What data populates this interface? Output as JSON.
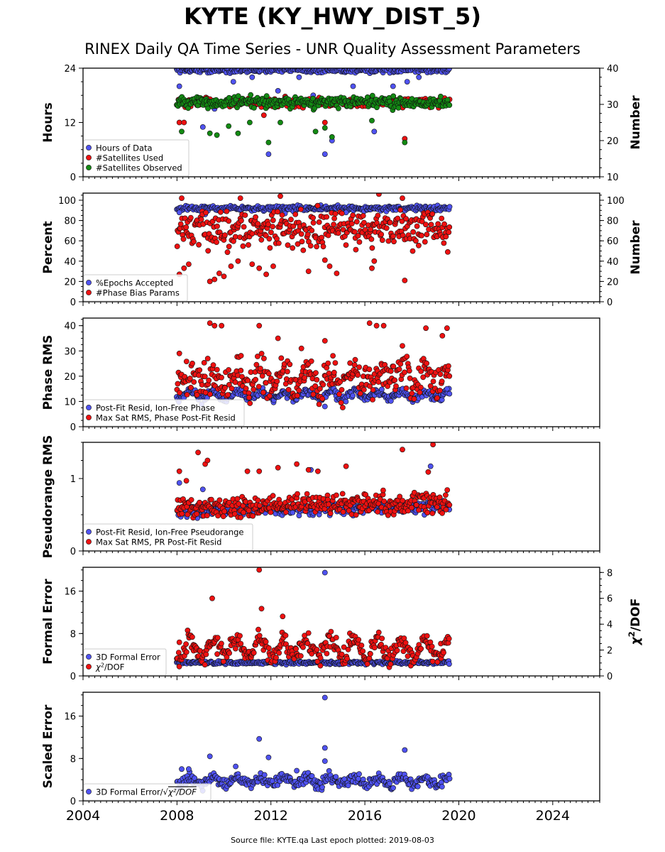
{
  "figure": {
    "title": "KYTE (KY_HWY_DIST_5)",
    "subtitle": "RINEX Daily QA Time Series - UNR Quality Assessment Parameters",
    "footer": "Source file: KYTE.qa Last epoch plotted: 2019-08-03"
  },
  "colors": {
    "blue": "#4f52f0",
    "red": "#ee1111",
    "green": "#138a13",
    "edge": "#111111"
  },
  "chart_data": [
    {
      "type": "scatter",
      "xlim": [
        2004,
        2026
      ],
      "x_ticks": [
        2004,
        2008,
        2012,
        2016,
        2020,
        2024
      ],
      "x_tick_labels": [
        "2004",
        "2008",
        "2012",
        "2016",
        "2020",
        "2024"
      ],
      "x_data_range": [
        2008.0,
        2019.6
      ],
      "ylabel": "Hours",
      "ylim": [
        0,
        24
      ],
      "y_ticks": [
        0,
        12,
        24
      ],
      "y_tick_labels": [
        "0",
        "12",
        "24"
      ],
      "y2label": "Number",
      "y2lim": [
        10,
        40
      ],
      "y2_ticks": [
        10,
        20,
        30,
        40
      ],
      "y2_tick_labels": [
        "10",
        "20",
        "30",
        "40"
      ],
      "legend": "lower-left",
      "series": [
        {
          "name": "Hours of Data",
          "color": "blue",
          "axis": "left",
          "typical": 23.6,
          "spread": 0.3,
          "outliers": [
            [
              2008.1,
              20
            ],
            [
              2008.3,
              17
            ],
            [
              2009.1,
              11
            ],
            [
              2009.6,
              15
            ],
            [
              2010.4,
              21
            ],
            [
              2011.2,
              22
            ],
            [
              2011.9,
              5
            ],
            [
              2012.3,
              19
            ],
            [
              2013.2,
              22
            ],
            [
              2013.8,
              18
            ],
            [
              2014.3,
              5
            ],
            [
              2014.6,
              8
            ],
            [
              2015.5,
              20
            ],
            [
              2016.4,
              10
            ],
            [
              2017.2,
              20
            ],
            [
              2017.8,
              21
            ],
            [
              2018.3,
              22
            ]
          ]
        },
        {
          "name": "#Satellites Used",
          "color": "red",
          "axis": "right",
          "typical": 30.5,
          "spread": 0.6,
          "outliers": [
            [
              2008.1,
              25
            ],
            [
              2008.3,
              25
            ],
            [
              2011.7,
              27
            ],
            [
              2014.3,
              25
            ],
            [
              2017.7,
              20.5
            ]
          ]
        },
        {
          "name": "#Satellites Observed",
          "color": "green",
          "axis": "right",
          "typical": 30.5,
          "spread": 0.8,
          "outliers": [
            [
              2008.2,
              22.5
            ],
            [
              2009.4,
              22
            ],
            [
              2009.7,
              21.5
            ],
            [
              2010.2,
              24
            ],
            [
              2010.6,
              22
            ],
            [
              2011.1,
              25
            ],
            [
              2011.9,
              19.5
            ],
            [
              2012.4,
              25
            ],
            [
              2013.9,
              22.5
            ],
            [
              2014.3,
              23.5
            ],
            [
              2014.6,
              21
            ],
            [
              2016.3,
              25.5
            ],
            [
              2017.7,
              19.5
            ]
          ]
        }
      ]
    },
    {
      "type": "scatter",
      "xlim": [
        2004,
        2026
      ],
      "x_ticks": [
        2004,
        2008,
        2012,
        2016,
        2020,
        2024
      ],
      "x_tick_labels": [
        "2004",
        "2008",
        "2012",
        "2016",
        "2020",
        "2024"
      ],
      "x_data_range": [
        2008.0,
        2019.6
      ],
      "ylabel": "Percent",
      "ylim": [
        0,
        107
      ],
      "y_ticks": [
        0,
        20,
        40,
        60,
        80,
        100
      ],
      "y_tick_labels": [
        "0",
        "20",
        "40",
        "60",
        "80",
        "100"
      ],
      "y2label": "Number",
      "y2lim": [
        0,
        107
      ],
      "y2_ticks": [
        0,
        20,
        40,
        60,
        80,
        100
      ],
      "y2_tick_labels": [
        "0",
        "20",
        "40",
        "60",
        "80",
        "100"
      ],
      "legend": "lower-left",
      "series": [
        {
          "name": "%Epochs Accepted",
          "color": "blue",
          "axis": "left",
          "typical": 92,
          "spread": 1.2,
          "outliers": [
            [
              2008.1,
              88
            ],
            [
              2009.2,
              86
            ],
            [
              2012.6,
              87
            ],
            [
              2015.2,
              88
            ]
          ]
        },
        {
          "name": "#Phase Bias Params",
          "color": "red",
          "axis": "right",
          "typical": 72,
          "spread": 9,
          "outliers": [
            [
              2008.1,
              27
            ],
            [
              2008.3,
              33
            ],
            [
              2008.5,
              37
            ],
            [
              2009.4,
              20
            ],
            [
              2009.6,
              22
            ],
            [
              2009.8,
              28
            ],
            [
              2010.0,
              25
            ],
            [
              2010.3,
              35
            ],
            [
              2010.6,
              40
            ],
            [
              2011.2,
              37
            ],
            [
              2011.5,
              33
            ],
            [
              2011.8,
              27
            ],
            [
              2012.1,
              35
            ],
            [
              2013.6,
              30
            ],
            [
              2014.3,
              41
            ],
            [
              2014.5,
              35
            ],
            [
              2014.8,
              28
            ],
            [
              2016.3,
              33
            ],
            [
              2016.4,
              40
            ],
            [
              2017.7,
              21
            ],
            [
              2008.2,
              102
            ],
            [
              2010.7,
              102
            ],
            [
              2012.4,
              104
            ],
            [
              2016.6,
              106
            ],
            [
              2017.6,
              102
            ]
          ]
        }
      ]
    },
    {
      "type": "scatter",
      "xlim": [
        2004,
        2026
      ],
      "x_ticks": [
        2004,
        2008,
        2012,
        2016,
        2020,
        2024
      ],
      "x_tick_labels": [
        "2004",
        "2008",
        "2012",
        "2016",
        "2020",
        "2024"
      ],
      "x_data_range": [
        2008.0,
        2019.6
      ],
      "ylabel": "Phase RMS",
      "ylim": [
        0,
        43
      ],
      "y_ticks": [
        0,
        10,
        20,
        30,
        40
      ],
      "y_tick_labels": [
        "0",
        "10",
        "20",
        "30",
        "40"
      ],
      "legend": "lower-left",
      "series": [
        {
          "name": "Post-Fit Resid, Ion-Free Phase",
          "color": "blue",
          "axis": "left",
          "typical": 12.5,
          "spread": 0.8,
          "seasonal": 1.5,
          "outliers": [
            [
              2014.3,
              8
            ],
            [
              2019.5,
              15
            ]
          ]
        },
        {
          "name": "Max Sat RMS, Phase Post-Fit Resid",
          "color": "red",
          "axis": "left",
          "typical": 19,
          "spread": 3.5,
          "seasonal": 3,
          "outliers": [
            [
              2009.4,
              41
            ],
            [
              2009.6,
              40
            ],
            [
              2009.9,
              40
            ],
            [
              2011.5,
              40
            ],
            [
              2012.3,
              35
            ],
            [
              2013.3,
              31
            ],
            [
              2014.3,
              34
            ],
            [
              2016.2,
              41
            ],
            [
              2016.5,
              40
            ],
            [
              2016.8,
              40
            ],
            [
              2017.6,
              32
            ],
            [
              2018.6,
              39
            ],
            [
              2019.3,
              36
            ],
            [
              2019.5,
              39
            ],
            [
              2008.1,
              29
            ]
          ]
        }
      ]
    },
    {
      "type": "scatter",
      "xlim": [
        2004,
        2026
      ],
      "x_ticks": [
        2004,
        2008,
        2012,
        2016,
        2020,
        2024
      ],
      "x_tick_labels": [
        "2004",
        "2008",
        "2012",
        "2016",
        "2020",
        "2024"
      ],
      "x_data_range": [
        2008.0,
        2019.6
      ],
      "ylabel": "Pseudorange RMS",
      "ylim": [
        0,
        1.5
      ],
      "y_ticks": [
        0,
        1
      ],
      "y_tick_labels": [
        "0",
        "1"
      ],
      "legend": "lower-left",
      "series": [
        {
          "name": "Post-Fit Resid, Ion-Free Pseudorange",
          "color": "blue",
          "axis": "left",
          "typical": 0.55,
          "spread": 0.04,
          "trend": 0.006,
          "outliers": [
            [
              2008.1,
              0.94
            ],
            [
              2009.1,
              0.85
            ],
            [
              2013.7,
              1.12
            ],
            [
              2018.8,
              1.17
            ]
          ]
        },
        {
          "name": "Max Sat RMS, PR Post-Fit Resid",
          "color": "red",
          "axis": "left",
          "typical": 0.6,
          "spread": 0.07,
          "trend": 0.006,
          "outliers": [
            [
              2008.1,
              1.1
            ],
            [
              2008.4,
              0.97
            ],
            [
              2008.9,
              1.36
            ],
            [
              2009.2,
              1.2
            ],
            [
              2009.3,
              1.25
            ],
            [
              2011.0,
              1.1
            ],
            [
              2011.5,
              1.1
            ],
            [
              2012.3,
              1.15
            ],
            [
              2013.1,
              1.2
            ],
            [
              2013.6,
              1.12
            ],
            [
              2014.0,
              1.1
            ],
            [
              2015.2,
              1.17
            ],
            [
              2017.6,
              1.4
            ],
            [
              2018.7,
              1.09
            ],
            [
              2018.9,
              1.47
            ]
          ]
        }
      ]
    },
    {
      "type": "scatter",
      "xlim": [
        2004,
        2026
      ],
      "x_ticks": [
        2004,
        2008,
        2012,
        2016,
        2020,
        2024
      ],
      "x_tick_labels": [
        "2004",
        "2008",
        "2012",
        "2016",
        "2020",
        "2024"
      ],
      "x_data_range": [
        2008.0,
        2019.6
      ],
      "ylabel": "Formal Error",
      "ylim": [
        0,
        20.5
      ],
      "y_ticks": [
        0,
        8,
        16
      ],
      "y_tick_labels": [
        "0",
        "8",
        "16"
      ],
      "y2label": "$\\chi^2$/DOF",
      "y2lim": [
        0,
        8.4
      ],
      "y2_ticks": [
        0,
        2,
        4,
        6,
        8
      ],
      "y2_tick_labels": [
        "0",
        "2",
        "4",
        "6",
        "8"
      ],
      "legend": "lower-left",
      "series": [
        {
          "name": "3D Formal Error",
          "color": "blue",
          "axis": "left",
          "typical": 2.5,
          "spread": 0.15,
          "outliers": [
            [
              2014.3,
              19.5
            ]
          ]
        },
        {
          "name": "$\\chi^2$/DOF",
          "color": "red",
          "axis": "right",
          "typical": 2.1,
          "spread": 0.35,
          "seasonal": 0.7,
          "outliers": [
            [
              2009.5,
              6
            ],
            [
              2011.5,
              8.2
            ],
            [
              2011.6,
              5.2
            ],
            [
              2012.5,
              4.6
            ],
            [
              2008.1,
              2.6
            ]
          ]
        }
      ]
    },
    {
      "type": "scatter",
      "xlim": [
        2004,
        2026
      ],
      "x_ticks": [
        2004,
        2008,
        2012,
        2016,
        2020,
        2024
      ],
      "x_tick_labels": [
        "2004",
        "2008",
        "2012",
        "2016",
        "2020",
        "2024"
      ],
      "x_data_range": [
        2008.0,
        2019.6
      ],
      "ylabel": "Scaled Error",
      "ylim": [
        0,
        20.5
      ],
      "y_ticks": [
        0,
        8,
        16
      ],
      "y_tick_labels": [
        "0",
        "8",
        "16"
      ],
      "legend": "lower-left",
      "series": [
        {
          "name": "3D Formal Error/$\\sqrt{\\chi^2/DOF}$",
          "color": "blue",
          "axis": "left",
          "typical": 3.8,
          "spread": 0.5,
          "seasonal": 0.7,
          "outliers": [
            [
              2008.2,
              6
            ],
            [
              2008.5,
              6
            ],
            [
              2009.4,
              8.4
            ],
            [
              2010.5,
              6.5
            ],
            [
              2011.5,
              11.7
            ],
            [
              2011.9,
              8.2
            ],
            [
              2014.3,
              19.5
            ],
            [
              2014.3,
              10
            ],
            [
              2014.3,
              7.5
            ],
            [
              2017.7,
              9.6
            ],
            [
              2013.1,
              5.7
            ]
          ]
        }
      ]
    }
  ]
}
